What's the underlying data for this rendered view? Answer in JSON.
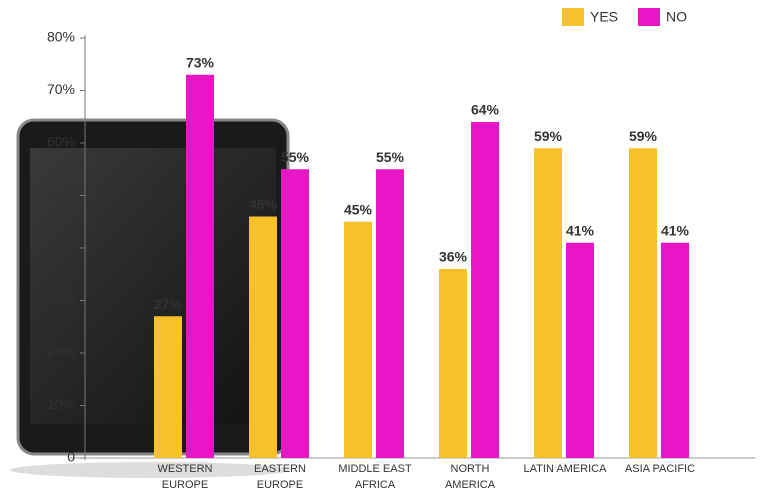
{
  "chart_data": {
    "type": "bar",
    "categories": [
      "WESTERN EUROPE",
      "EASTERN EUROPE",
      "MIDDLE EAST AFRICA",
      "NORTH AMERICA",
      "LATIN AMERICA",
      "ASIA PACIFIC"
    ],
    "series": [
      {
        "name": "YES",
        "color": "#f8c12c",
        "values": [
          27,
          46,
          45,
          36,
          59,
          59
        ],
        "value_labels": [
          "27%",
          "46%",
          "45%",
          "36%",
          "59%",
          "59%"
        ]
      },
      {
        "name": "NO",
        "color": "#e916c6",
        "values": [
          73,
          55,
          55,
          64,
          41,
          41
        ],
        "value_labels": [
          "73%",
          "55%",
          "55%",
          "64%",
          "41%",
          "41%"
        ]
      }
    ],
    "ylim": [
      0,
      80
    ],
    "yticks": [
      0,
      {
        "value": 10,
        "label": "10%"
      },
      {
        "value": 20,
        "label": "20%"
      },
      {
        "value": 30,
        "label": "30%"
      },
      {
        "value": 40,
        "label": "40%"
      },
      {
        "value": 50,
        "label": "50%"
      },
      {
        "value": 60,
        "label": "60%"
      },
      {
        "value": 70,
        "label": "70%"
      },
      {
        "value": 80,
        "label": "80%"
      }
    ],
    "legend": "top-right"
  }
}
